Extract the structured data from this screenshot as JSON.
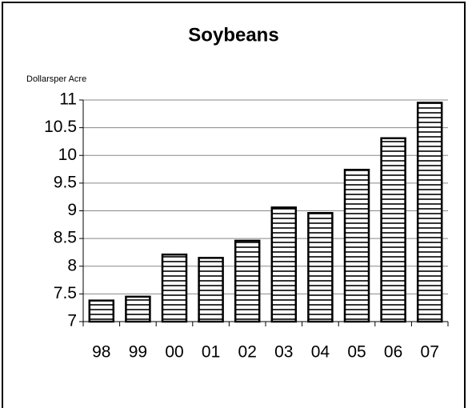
{
  "chart_data": {
    "type": "bar",
    "title": "Soybeans",
    "y_label": "Dollarsper Acre",
    "categories": [
      "98",
      "99",
      "00",
      "01",
      "02",
      "03",
      "04",
      "05",
      "06",
      "07"
    ],
    "values": [
      7.38,
      7.45,
      8.21,
      8.15,
      8.46,
      9.06,
      8.96,
      9.74,
      10.31,
      10.95
    ],
    "color": "#000000",
    "ylim": [
      7,
      11
    ],
    "yticks": [
      7,
      7.5,
      8,
      8.5,
      9,
      9.5,
      10,
      10.5,
      11
    ],
    "grid": true
  }
}
